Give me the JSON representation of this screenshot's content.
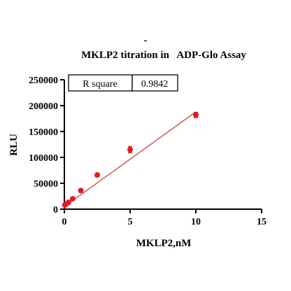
{
  "chart_data": {
    "type": "scatter",
    "title_mark": "-",
    "title": "MKLP2 titration in   ADP-Glo Assay",
    "xlabel": "MKLP2,nM",
    "ylabel": "RLU",
    "xlim": [
      0,
      15
    ],
    "ylim": [
      0,
      250000
    ],
    "x_ticks": [
      0,
      5,
      10,
      15
    ],
    "y_ticks": [
      0,
      50000,
      100000,
      150000,
      200000,
      250000
    ],
    "x_tick_labels": [
      "0",
      "5",
      "10",
      "15"
    ],
    "y_tick_labels": [
      "0",
      "50000",
      "100000",
      "150000",
      "200000",
      "250000"
    ],
    "grid": false,
    "stats_box": {
      "label": "R square",
      "value": "0.9842"
    },
    "series": [
      {
        "points": [
          {
            "x": 0.04,
            "y": 8000,
            "err": 1500
          },
          {
            "x": 0.08,
            "y": 9000,
            "err": 1500
          },
          {
            "x": 0.16,
            "y": 10000,
            "err": 1500
          },
          {
            "x": 0.31,
            "y": 13000,
            "err": 1500
          },
          {
            "x": 0.63,
            "y": 20000,
            "err": 2000
          },
          {
            "x": 1.25,
            "y": 36000,
            "err": 3000
          },
          {
            "x": 2.5,
            "y": 66000,
            "err": 3000
          },
          {
            "x": 5,
            "y": 115000,
            "err": 6000
          },
          {
            "x": 10,
            "y": 182000,
            "err": 5000
          }
        ],
        "fit": {
          "x": [
            0,
            10
          ],
          "y": [
            5000,
            188000
          ]
        }
      }
    ],
    "colors": {
      "points": "#e8191e",
      "fit": "#c0392b",
      "axes": "#000000"
    }
  }
}
